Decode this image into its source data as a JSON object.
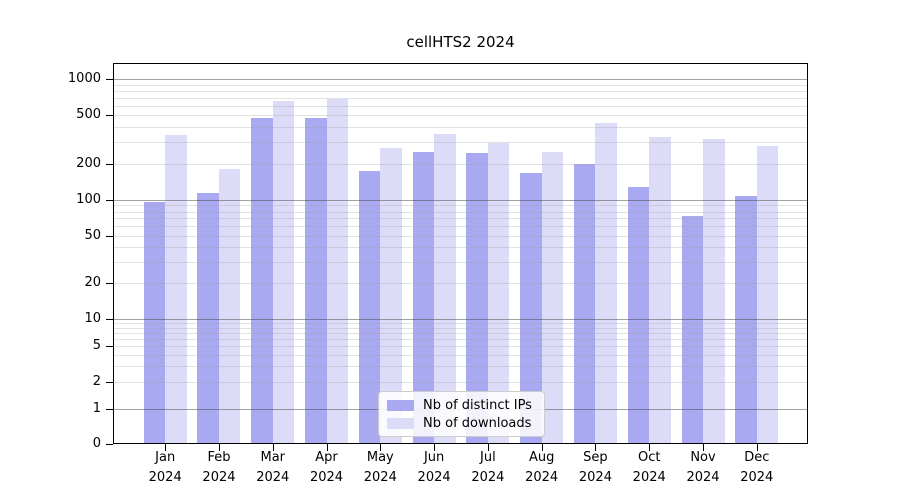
{
  "title": "cellHTS2 2024",
  "chart_data": {
    "type": "bar",
    "title": "cellHTS2 2024",
    "categories": [
      "Jan 2024",
      "Feb 2024",
      "Mar 2024",
      "Apr 2024",
      "May 2024",
      "Jun 2024",
      "Jul 2024",
      "Aug 2024",
      "Sep 2024",
      "Oct 2024",
      "Nov 2024",
      "Dec 2024"
    ],
    "months": [
      "Jan",
      "Feb",
      "Mar",
      "Apr",
      "May",
      "Jun",
      "Jul",
      "Aug",
      "Sep",
      "Oct",
      "Nov",
      "Dec"
    ],
    "year": "2024",
    "series": [
      {
        "name": "Nb of distinct IPs",
        "color": "#a9a9f1",
        "values": [
          97,
          114,
          473,
          473,
          174,
          251,
          243,
          168,
          197,
          129,
          73,
          108
        ]
      },
      {
        "name": "Nb of downloads",
        "color": "#dcdcf8",
        "values": [
          345,
          179,
          658,
          680,
          267,
          349,
          298,
          249,
          430,
          330,
          318,
          281
        ]
      }
    ],
    "y_ticks": [
      0,
      1,
      2,
      5,
      10,
      20,
      50,
      100,
      200,
      500,
      1000
    ],
    "y_scale": "log-with-zero",
    "ylim": [
      0,
      1350
    ],
    "xlabel": "",
    "ylabel": "",
    "grid": true,
    "legend_position": "lower center"
  }
}
